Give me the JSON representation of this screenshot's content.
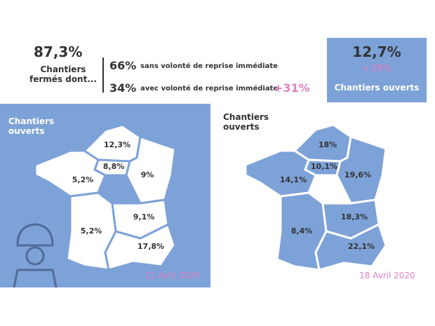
{
  "header": {
    "closed": {
      "value": "87,3%",
      "label": "Chantiers fermés dont..."
    },
    "breakdown": [
      {
        "value": "66%",
        "label": "sans volonté de reprise immédiate"
      },
      {
        "value": "34%",
        "label": "avec volonté de reprise immédiate",
        "change": "+31%"
      }
    ],
    "open": {
      "value": "12,7%",
      "change": "+39%",
      "label": "Chantiers ouverts"
    }
  },
  "maps": [
    {
      "title": "Chantiers ouverts",
      "date": "11 Avril 2020",
      "regions": [
        "12,3%",
        "8,8%",
        "9%",
        "5,2%",
        "5,2%",
        "9,1%",
        "17,8%"
      ]
    },
    {
      "title": "Chantiers ouverts",
      "date": "18 Avril 2020",
      "regions": [
        "18%",
        "10,1%",
        "19,6%",
        "14,1%",
        "8,4%",
        "18,3%",
        "22,1%"
      ]
    }
  ]
}
